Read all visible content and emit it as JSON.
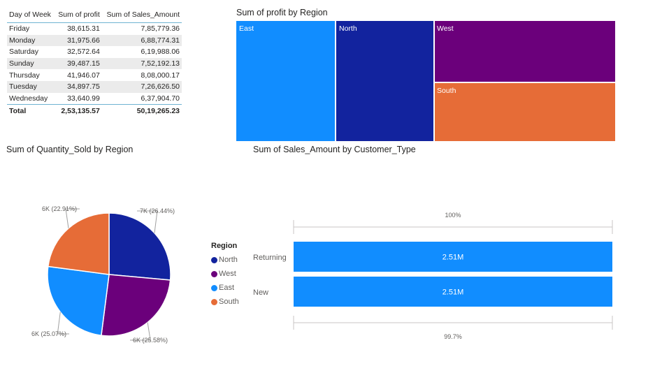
{
  "table": {
    "headers": [
      "Day of Week",
      "Sum of profit",
      "Sum of Sales_Amount"
    ],
    "rows": [
      [
        "Friday",
        "38,615.31",
        "7,85,779.36"
      ],
      [
        "Monday",
        "31,975.66",
        "6,88,774.31"
      ],
      [
        "Saturday",
        "32,572.64",
        "6,19,988.06"
      ],
      [
        "Sunday",
        "39,487.15",
        "7,52,192.13"
      ],
      [
        "Thursday",
        "41,946.07",
        "8,08,000.17"
      ],
      [
        "Tuesday",
        "34,897.75",
        "7,26,626.50"
      ],
      [
        "Wednesday",
        "33,640.99",
        "6,37,904.70"
      ]
    ],
    "total": [
      "Total",
      "2,53,135.57",
      "50,19,265.23"
    ]
  },
  "treemap": {
    "title": "Sum of profit by Region"
  },
  "pie": {
    "title": "Sum of Quantity_Sold by Region",
    "legend_title": "Region"
  },
  "bar": {
    "title": "Sum of Sales_Amount by Customer_Type",
    "top_marker": "100%",
    "bottom_marker": "99.7%"
  },
  "chart_data": [
    {
      "type": "table",
      "columns": [
        "Day of Week",
        "Sum of profit",
        "Sum of Sales_Amount"
      ],
      "rows": [
        [
          "Friday",
          38615.31,
          785779.36
        ],
        [
          "Monday",
          31975.66,
          688774.31
        ],
        [
          "Saturday",
          32572.64,
          619988.06
        ],
        [
          "Sunday",
          39487.15,
          752192.13
        ],
        [
          "Thursday",
          41946.07,
          808000.17
        ],
        [
          "Tuesday",
          34897.75,
          726626.5
        ],
        [
          "Wednesday",
          33640.99,
          637904.7
        ]
      ],
      "total": [
        "Total",
        253135.57,
        5019265.23
      ]
    },
    {
      "type": "treemap",
      "title": "Sum of profit by Region",
      "categories": [
        "East",
        "North",
        "West",
        "South"
      ],
      "values": [
        63500,
        63000,
        63500,
        63100
      ],
      "colors": [
        "#118dff",
        "#12239e",
        "#6b007b",
        "#e66c37"
      ]
    },
    {
      "type": "pie",
      "title": "Sum of Quantity_Sold by Region",
      "categories": [
        "North",
        "West",
        "East",
        "South"
      ],
      "values": [
        26.44,
        25.58,
        25.07,
        22.91
      ],
      "labels": [
        "7K (26.44%)",
        "6K (25.58%)",
        "6K (25.07%)",
        "6K (22.91%)"
      ],
      "colors": [
        "#12239e",
        "#6b007b",
        "#118dff",
        "#e66c37"
      ],
      "legend_position": "right"
    },
    {
      "type": "bar",
      "title": "Sum of Sales_Amount by Customer_Type",
      "categories": [
        "Returning",
        "New"
      ],
      "values": [
        2.51,
        2.51
      ],
      "data_labels": [
        "2.51M",
        "2.51M"
      ],
      "color": "#118dff"
    }
  ]
}
